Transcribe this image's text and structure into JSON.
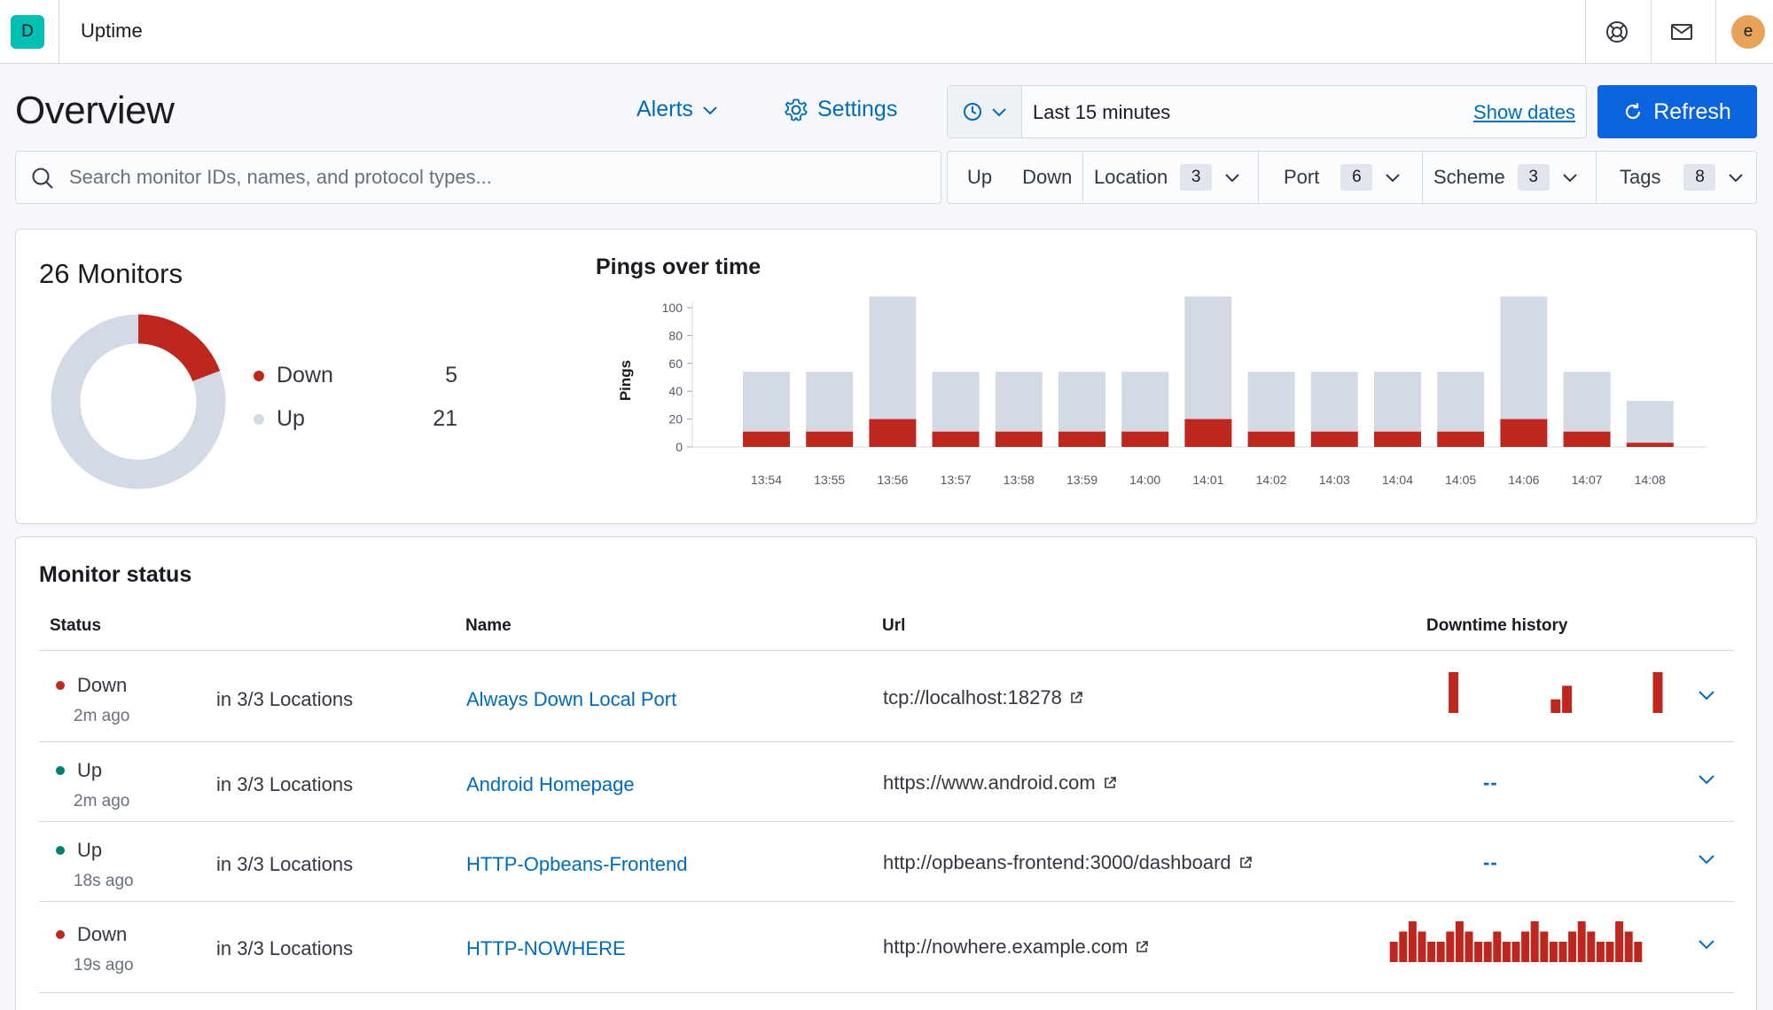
{
  "topbar": {
    "logo_letter": "D",
    "app_title": "Uptime",
    "avatar_letter": "e",
    "icons": [
      "help-icon",
      "mail-icon"
    ]
  },
  "header": {
    "title": "Overview",
    "alerts_label": "Alerts",
    "settings_label": "Settings",
    "date_range": "Last 15 minutes",
    "show_dates": "Show dates",
    "refresh_label": "Refresh"
  },
  "search": {
    "placeholder": "Search monitor IDs, names, and protocol types..."
  },
  "filters": {
    "up": "Up",
    "down": "Down",
    "location": {
      "label": "Location",
      "count": "3"
    },
    "port": {
      "label": "Port",
      "count": "6"
    },
    "scheme": {
      "label": "Scheme",
      "count": "3"
    },
    "tags": {
      "label": "Tags",
      "count": "8"
    }
  },
  "snapshot": {
    "title": "26 Monitors",
    "down_label": "Down",
    "down_value": "5",
    "up_label": "Up",
    "up_value": "21"
  },
  "colors": {
    "down": "#bd271e",
    "up_bar": "#d3dae6",
    "up_dot": "#017d73",
    "link": "#006bb8",
    "primary": "#0b64dd"
  },
  "chart_data": {
    "type": "bar",
    "title": "Pings over time",
    "xlabel": "",
    "ylabel": "Pings",
    "ylim": [
      0,
      100
    ],
    "yticks": [
      "0",
      "20",
      "40",
      "60",
      "80",
      "100"
    ],
    "categories": [
      "13:54",
      "13:55",
      "13:56",
      "13:57",
      "13:58",
      "13:59",
      "14:00",
      "14:01",
      "14:02",
      "14:03",
      "14:04",
      "14:05",
      "14:06",
      "14:07",
      "14:08"
    ],
    "stacked": true,
    "series": [
      {
        "name": "Down",
        "values": [
          11,
          11,
          20,
          11,
          11,
          11,
          11,
          20,
          11,
          11,
          11,
          11,
          20,
          11,
          3
        ]
      },
      {
        "name": "Up",
        "values": [
          43,
          43,
          88,
          43,
          43,
          43,
          43,
          88,
          43,
          43,
          43,
          43,
          88,
          43,
          30
        ]
      }
    ],
    "grid": false
  },
  "monitor_status": {
    "title": "Monitor status",
    "columns": [
      "Status",
      "Name",
      "Url",
      "Downtime history"
    ],
    "rows": [
      {
        "status": "Down",
        "ago": "2m ago",
        "locations": "in 3/3 Locations",
        "name": "Always Down Local Port",
        "url": "tcp://localhost:18278",
        "history": [
          0,
          0,
          0,
          0,
          0,
          0,
          0,
          0,
          3,
          0,
          0,
          0,
          0,
          0,
          0,
          0,
          0,
          1,
          2,
          0,
          0,
          0,
          0,
          0,
          0,
          0,
          3,
          0
        ]
      },
      {
        "status": "Up",
        "ago": "2m ago",
        "locations": "in 3/3 Locations",
        "name": "Android Homepage",
        "url": "https://www.android.com",
        "history_empty": "--"
      },
      {
        "status": "Up",
        "ago": "18s ago",
        "locations": "in 3/3 Locations",
        "name": "HTTP-Opbeans-Frontend",
        "url": "http://opbeans-frontend:3000/dashboard",
        "history_empty": "--"
      },
      {
        "status": "Down",
        "ago": "19s ago",
        "locations": "in 3/3 Locations",
        "name": "HTTP-NOWHERE",
        "url": "http://nowhere.example.com",
        "history": [
          2,
          3,
          4,
          3,
          2,
          2,
          3,
          4,
          3,
          2,
          2,
          3,
          2,
          2,
          3,
          4,
          3,
          2,
          2,
          3,
          4,
          3,
          2,
          2,
          4,
          3,
          2
        ]
      }
    ]
  }
}
